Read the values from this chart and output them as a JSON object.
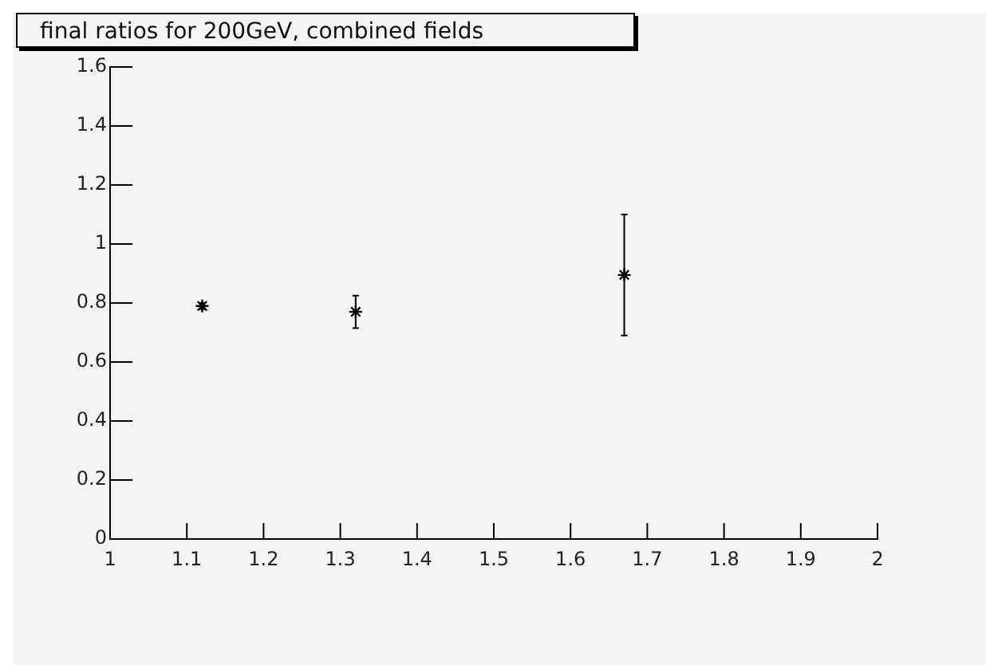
{
  "chart_data": {
    "type": "scatter",
    "title": "final ratios for 200GeV, combined fields",
    "x": [
      1.12,
      1.32,
      1.67
    ],
    "values": [
      0.79,
      0.77,
      0.895
    ],
    "errors": [
      0.01,
      0.055,
      0.205
    ],
    "color": "#000000",
    "marker": "cross",
    "grid": false,
    "legend": false,
    "xlim": [
      1,
      2
    ],
    "xticks": [
      1,
      1.1,
      1.2,
      1.3,
      1.4,
      1.5,
      1.6,
      1.7,
      1.8,
      1.9,
      2
    ],
    "ylim": [
      0,
      1.6
    ],
    "yticks": [
      0,
      0.2,
      0.4,
      0.6,
      0.8,
      1,
      1.2,
      1.4,
      1.6
    ]
  }
}
